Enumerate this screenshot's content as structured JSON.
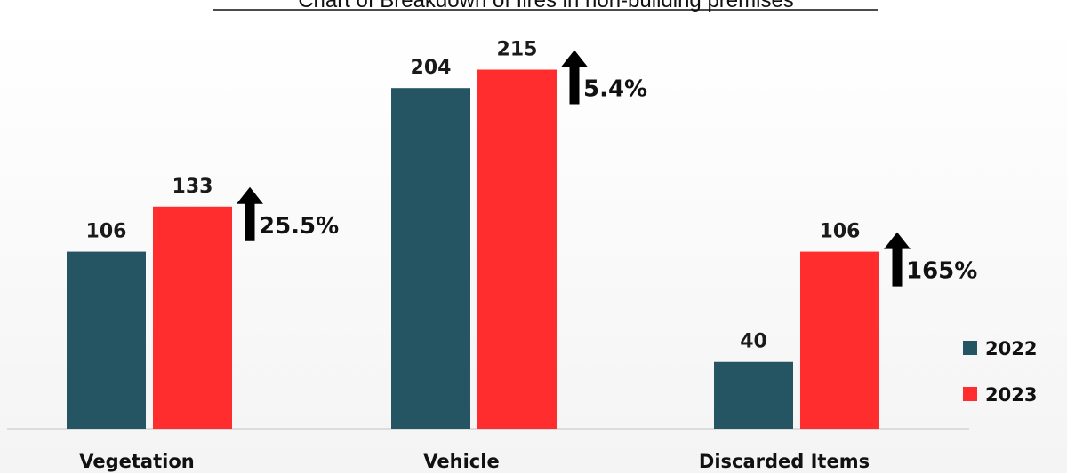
{
  "chart_data": {
    "type": "bar",
    "title": "Chart of Breakdown of fires in non-building premises",
    "categories": [
      "Vegetation",
      "Vehicle",
      "Discarded Items"
    ],
    "series": [
      {
        "name": "2022",
        "values": [
          106,
          204,
          40
        ],
        "color": "#255563"
      },
      {
        "name": "2023",
        "values": [
          133,
          215,
          106
        ],
        "color": "#ff2d2d"
      }
    ],
    "changes": [
      "25.5%",
      "5.4%",
      "165%"
    ],
    "change_direction": "up",
    "ylim": [
      0,
      230
    ],
    "grid": false,
    "legend": "right"
  }
}
